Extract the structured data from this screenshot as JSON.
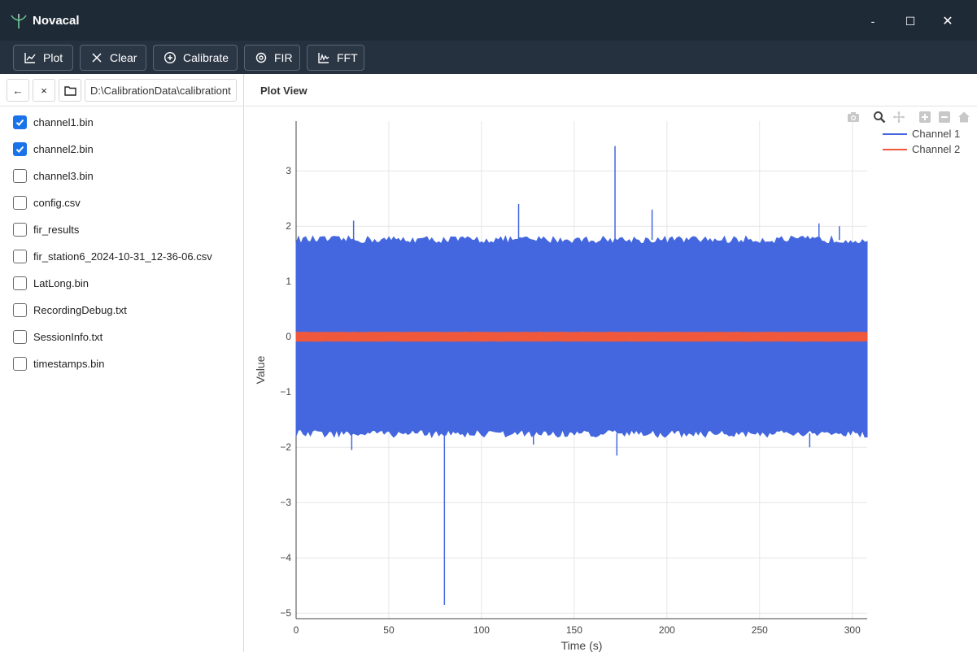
{
  "app": {
    "title": "Novacal",
    "logo_icon": "sprout-icon"
  },
  "window_controls": {
    "minimize": "‐",
    "maximize": "☐",
    "close": "✕"
  },
  "toolbar": {
    "buttons": [
      {
        "label": "Plot",
        "icon": "line-chart-icon"
      },
      {
        "label": "Clear",
        "icon": "close-icon"
      },
      {
        "label": "Calibrate",
        "icon": "plus-circle-icon"
      },
      {
        "label": "FIR",
        "icon": "target-icon"
      },
      {
        "label": "FFT",
        "icon": "spectrum-icon"
      }
    ]
  },
  "navigator": {
    "back": "←",
    "clear": "×",
    "path": "D:\\CalibrationData\\calibrationt"
  },
  "files": [
    {
      "name": "channel1.bin",
      "checked": true
    },
    {
      "name": "channel2.bin",
      "checked": true
    },
    {
      "name": "channel3.bin",
      "checked": false
    },
    {
      "name": "config.csv",
      "checked": false
    },
    {
      "name": "fir_results",
      "checked": false
    },
    {
      "name": "fir_station6_2024-10-31_12-36-06.csv",
      "checked": false
    },
    {
      "name": "LatLong.bin",
      "checked": false
    },
    {
      "name": "RecordingDebug.txt",
      "checked": false
    },
    {
      "name": "SessionInfo.txt",
      "checked": false
    },
    {
      "name": "timestamps.bin",
      "checked": false
    }
  ],
  "plot_view": {
    "title": "Plot View"
  },
  "colors": {
    "channel1": "#4467df",
    "channel2": "#f0583c",
    "titlebar": "#1f2a37",
    "toolbar": "#26313f",
    "checkbox": "#1a73e8"
  },
  "chart_data": {
    "type": "line",
    "title": "",
    "xlabel": "Time (s)",
    "ylabel": "Value",
    "xlim": [
      0,
      308
    ],
    "ylim": [
      -5.1,
      3.9
    ],
    "xticks": [
      0,
      50,
      100,
      150,
      200,
      250,
      300
    ],
    "xtick_labels": [
      "0",
      "50",
      "100",
      "150",
      "200",
      "250",
      "300"
    ],
    "yticks": [
      3,
      2,
      1,
      0,
      -1,
      -2,
      -3,
      -4,
      -5
    ],
    "ytick_labels": [
      "3",
      "2",
      "1",
      "0",
      "−1",
      "−2",
      "−3",
      "−4",
      "−5"
    ],
    "grid": true,
    "legend": "top-right",
    "series": [
      {
        "name": "Channel 1",
        "envelope_upper": 1.75,
        "envelope_lower": -1.75,
        "spikes": [
          {
            "x": 31,
            "y": 2.1
          },
          {
            "x": 120,
            "y": 2.4
          },
          {
            "x": 172,
            "y": 3.45
          },
          {
            "x": 192,
            "y": 2.3
          },
          {
            "x": 282,
            "y": 2.05
          },
          {
            "x": 293,
            "y": 2.0
          },
          {
            "x": 80,
            "y": -4.85
          },
          {
            "x": 30,
            "y": -2.05
          },
          {
            "x": 128,
            "y": -1.95
          },
          {
            "x": 173,
            "y": -2.15
          },
          {
            "x": 277,
            "y": -2.0
          }
        ]
      },
      {
        "name": "Channel 2",
        "envelope_upper": 0.08,
        "envelope_lower": -0.08,
        "spikes": []
      }
    ]
  },
  "modebar": [
    "camera-icon",
    "zoom-icon",
    "pan-icon",
    "zoom-in-icon",
    "zoom-out-icon",
    "home-icon"
  ]
}
